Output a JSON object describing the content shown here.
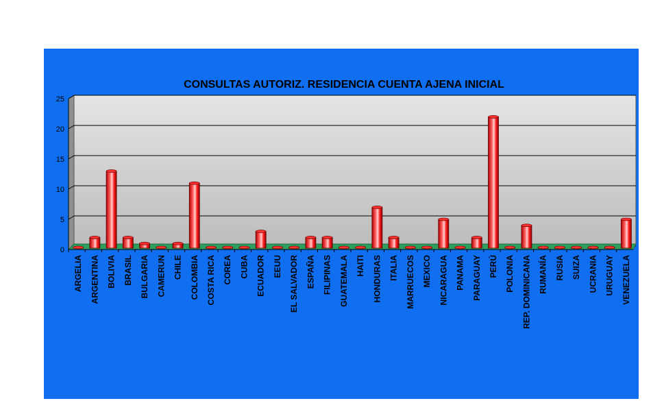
{
  "chart_data": {
    "type": "bar",
    "title": "CONSULTAS AUTORIZ. RESIDENCIA CUENTA AJENA INICIAL",
    "xlabel": "",
    "ylabel": "",
    "ylim": [
      0,
      25
    ],
    "yticks": [
      0,
      5,
      10,
      15,
      20,
      25
    ],
    "grid": true,
    "legend": "none",
    "categories": [
      "ARGELIA",
      "ARGENTINA",
      "BOLIVIA",
      "BRASIL",
      "BULGARIA",
      "CAMERUN",
      "CHILE",
      "COLOMBIA",
      "COSTA RICA",
      "COREA",
      "CUBA",
      "ECUADOR",
      "EEUU",
      "EL SALVADOR",
      "ESPAÑA",
      "FILIPINAS",
      "GUATEMALA",
      "HAITI",
      "HONDURAS",
      "ITALIA",
      "MARRUECOS",
      "MEXICO",
      "NICARAGUA",
      "PANAMA",
      "PARAGUAY",
      "PERÚ",
      "POLONIA",
      "REP. DOMINICANA",
      "RUMANÍA",
      "RUSIA",
      "SUIZA",
      "UCRANIA",
      "URUGUAY",
      "VENEZUELA"
    ],
    "values": [
      0,
      2,
      13,
      2,
      1,
      0,
      1,
      11,
      0,
      0,
      0,
      3,
      0,
      0,
      2,
      2,
      0,
      0,
      7,
      2,
      0,
      0,
      5,
      0,
      2,
      22,
      0,
      4,
      0,
      0,
      0,
      0,
      0,
      5
    ],
    "colors": {
      "background": "#0f6ff0",
      "plot_wall": "#c8c8c8",
      "floor": "#2f9f5f",
      "bar": "#e00000",
      "bar_highlight": "#ff8080"
    }
  }
}
